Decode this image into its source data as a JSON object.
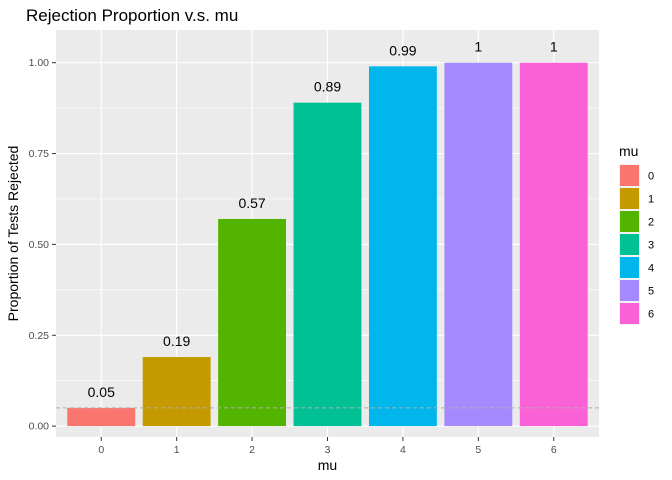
{
  "chart_data": {
    "type": "bar",
    "title": "Rejection Proportion v.s. mu",
    "xlabel": "mu",
    "ylabel": "Proportion of Tests Rejected",
    "categories": [
      "0",
      "1",
      "2",
      "3",
      "4",
      "5",
      "6"
    ],
    "values": [
      0.05,
      0.19,
      0.57,
      0.89,
      0.99,
      1,
      1
    ],
    "data_labels": [
      "0.05",
      "0.19",
      "0.57",
      "0.89",
      "0.99",
      "1",
      "1"
    ],
    "ylim": [
      -0.03,
      1.09
    ],
    "yticks": [
      0,
      0.25,
      0.5,
      0.75,
      1
    ],
    "ytick_labels": [
      "0.00",
      "0.25",
      "0.50",
      "0.75",
      "1.00"
    ],
    "reference_line": {
      "y": 0.05,
      "style": "dashed",
      "color": "#b0b0b0"
    },
    "grid": true,
    "legend": {
      "title": "mu",
      "position": "right",
      "labels": [
        "0",
        "1",
        "2",
        "3",
        "4",
        "5",
        "6"
      ]
    },
    "colors": [
      "#F8766D",
      "#C49A00",
      "#53B400",
      "#00C094",
      "#00B6EB",
      "#A58AFF",
      "#FB61D7"
    ],
    "panel_background": "#ebebeb"
  }
}
